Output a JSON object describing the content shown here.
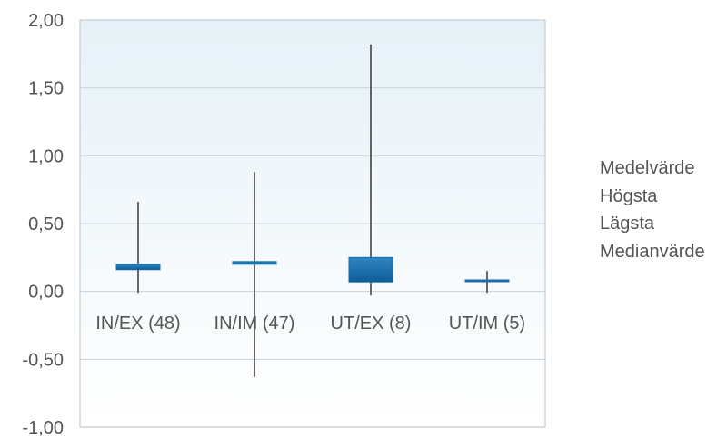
{
  "chart_data": {
    "type": "candlestick",
    "ylim": [
      -1.0,
      2.0
    ],
    "y_ticks": [
      "2,00",
      "1,50",
      "1,00",
      "0,50",
      "0,00",
      "-0,50",
      "-1,00"
    ],
    "y_tick_values": [
      2.0,
      1.5,
      1.0,
      0.5,
      0.0,
      -0.5,
      -1.0
    ],
    "categories": [
      "IN/EX (48)",
      "IN/IM (47)",
      "UT/EX (8)",
      "UT/IM (5)"
    ],
    "series": [
      {
        "category": "IN/EX (48)",
        "high": 0.66,
        "low": -0.01,
        "box_top": 0.2,
        "box_bottom": 0.16
      },
      {
        "category": "IN/IM (47)",
        "high": 0.88,
        "low": -0.63,
        "box_top": 0.22,
        "box_bottom": 0.2
      },
      {
        "category": "UT/EX (8)",
        "high": 1.82,
        "low": -0.03,
        "box_top": 0.25,
        "box_bottom": 0.07
      },
      {
        "category": "UT/IM (5)",
        "high": 0.15,
        "low": -0.01,
        "box_top": 0.085,
        "box_bottom": 0.075
      }
    ],
    "legend": [
      "Medelvärde",
      "Högsta",
      "Lägsta",
      "Medianvärde"
    ],
    "grid": true,
    "colors": {
      "box": "#1a6aa6",
      "box_light": "#2f8cc8",
      "wick": "#666666",
      "plot_bg_top": "#eaf4f9",
      "gridline": "#c9d3da"
    }
  }
}
